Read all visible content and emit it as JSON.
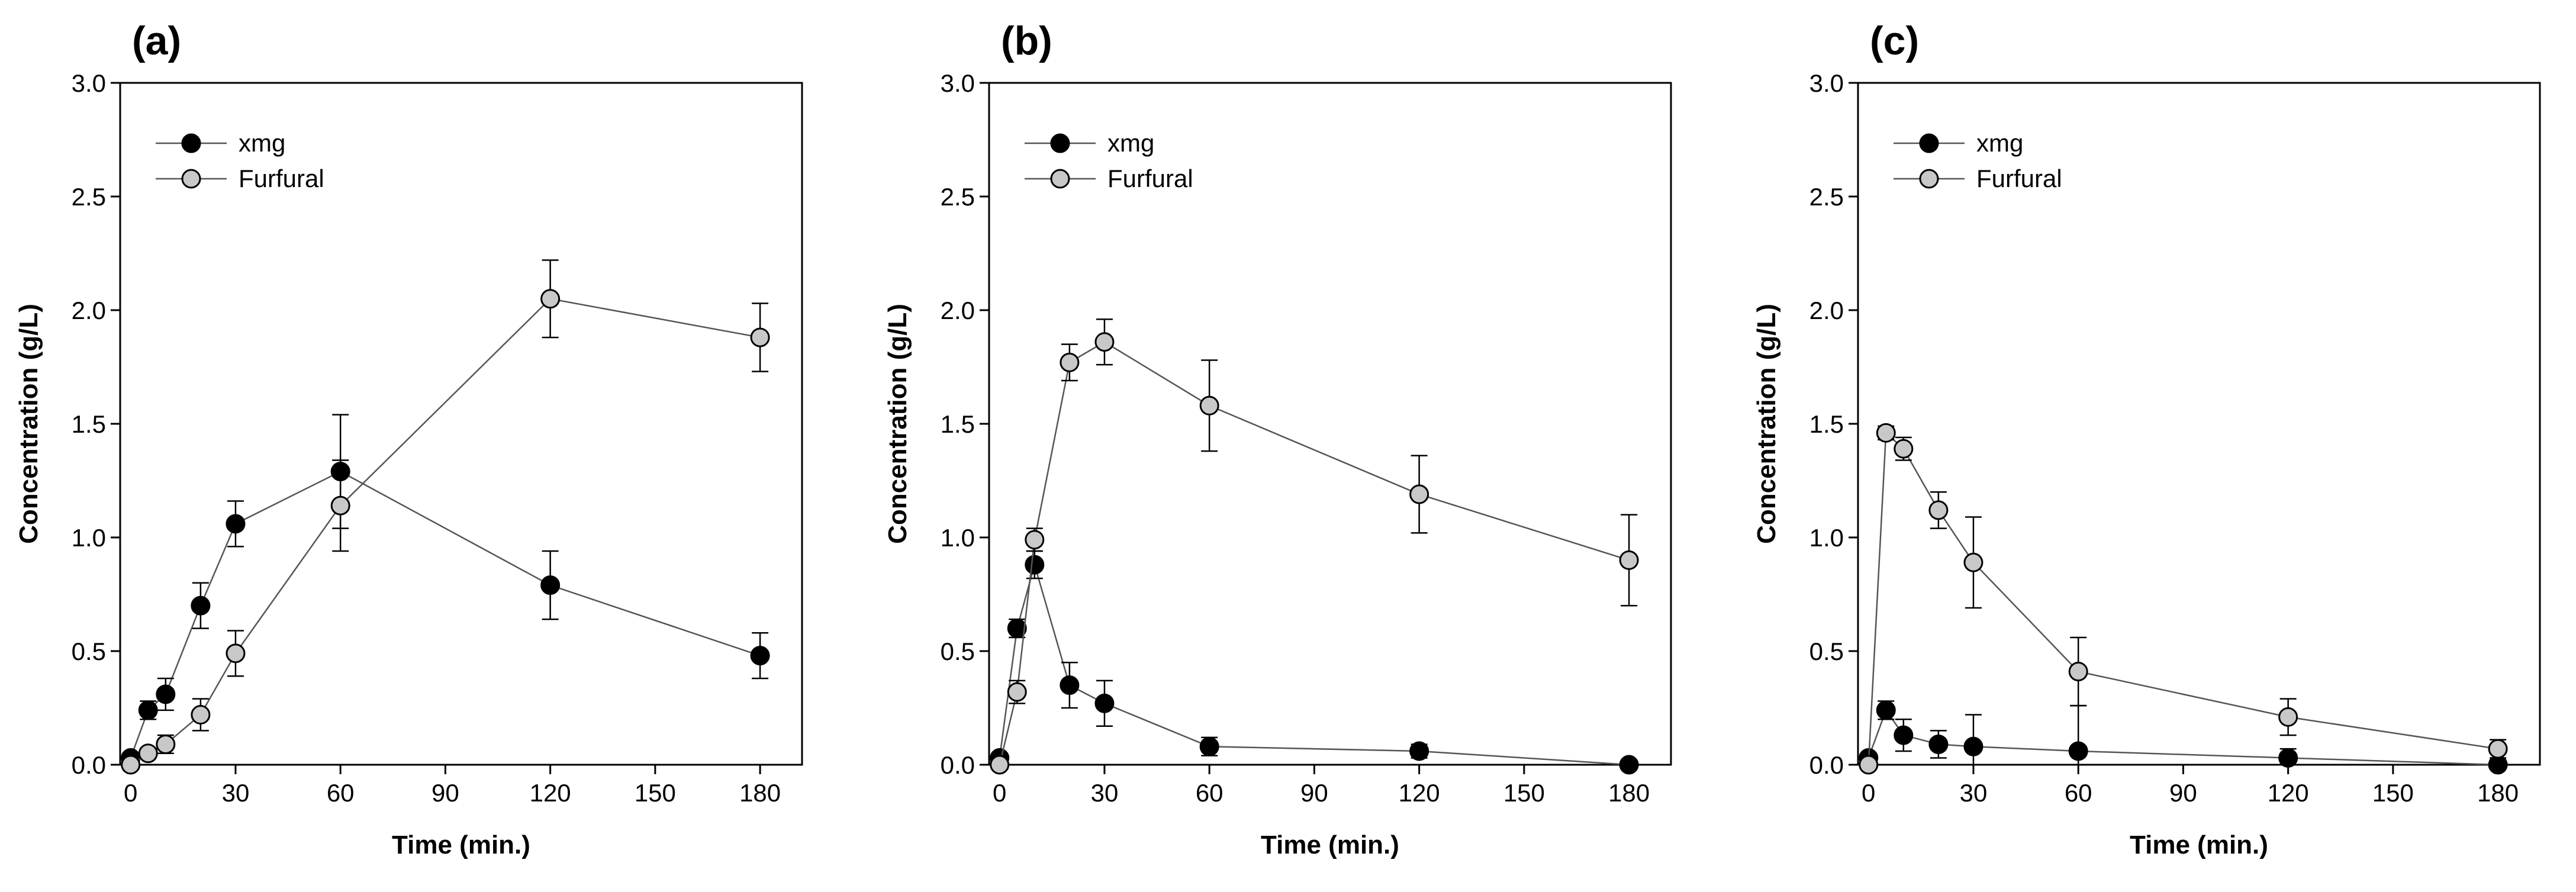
{
  "colors": {
    "xmg": "#000000",
    "furfural": "#c8c8c8",
    "line": "#555555",
    "axis": "#000000"
  },
  "chart_data": [
    {
      "type": "line",
      "panel_label": "(a)",
      "xlabel": "Time (min.)",
      "ylabel": "Concentration (g/L)",
      "xlim": [
        -3,
        192
      ],
      "ylim": [
        0,
        3.0
      ],
      "xticks": [
        0,
        30,
        60,
        90,
        120,
        150,
        180
      ],
      "xtick_labels": [
        "0",
        "30",
        "60",
        "90",
        "120",
        "150",
        "180"
      ],
      "yticks": [
        0,
        0.5,
        1.0,
        1.5,
        2.0,
        2.5,
        3.0
      ],
      "ytick_labels": [
        "0.0",
        "0.5",
        "1.0",
        "1.5",
        "2.0",
        "2.5",
        "3.0"
      ],
      "legend_position": "top-left",
      "series": [
        {
          "name": "xmg",
          "marker": "filled-black-circle",
          "x": [
            0,
            5,
            10,
            20,
            30,
            60,
            120,
            180
          ],
          "y": [
            0.03,
            0.24,
            0.31,
            0.7,
            1.06,
            1.29,
            0.79,
            0.48
          ],
          "err": [
            0,
            0.04,
            0.07,
            0.1,
            0.1,
            0.25,
            0.15,
            0.1
          ]
        },
        {
          "name": "Furfural",
          "marker": "filled-grey-circle",
          "x": [
            0,
            5,
            10,
            20,
            30,
            60,
            120,
            180
          ],
          "y": [
            0.0,
            0.05,
            0.09,
            0.22,
            0.49,
            1.14,
            2.05,
            1.88
          ],
          "err": [
            0,
            0.02,
            0.04,
            0.07,
            0.1,
            0.2,
            0.17,
            0.15
          ]
        }
      ]
    },
    {
      "type": "line",
      "panel_label": "(b)",
      "xlabel": "Time (min.)",
      "ylabel": "Concentration (g/L)",
      "xlim": [
        -3,
        192
      ],
      "ylim": [
        0,
        3.0
      ],
      "xticks": [
        0,
        30,
        60,
        90,
        120,
        150,
        180
      ],
      "xtick_labels": [
        "0",
        "30",
        "60",
        "90",
        "120",
        "150",
        "180"
      ],
      "yticks": [
        0,
        0.5,
        1.0,
        1.5,
        2.0,
        2.5,
        3.0
      ],
      "ytick_labels": [
        "0.0",
        "0.5",
        "1.0",
        "1.5",
        "2.0",
        "2.5",
        "3.0"
      ],
      "legend_position": "top-left",
      "series": [
        {
          "name": "xmg",
          "marker": "filled-black-circle",
          "x": [
            0,
            5,
            10,
            20,
            30,
            60,
            120,
            180
          ],
          "y": [
            0.03,
            0.6,
            0.88,
            0.35,
            0.27,
            0.08,
            0.06,
            0.0
          ],
          "err": [
            0,
            0.04,
            0.06,
            0.1,
            0.1,
            0.04,
            0.03,
            0
          ]
        },
        {
          "name": "Furfural",
          "marker": "filled-grey-circle",
          "x": [
            0,
            5,
            10,
            20,
            30,
            60,
            120,
            180
          ],
          "y": [
            0.0,
            0.32,
            0.99,
            1.77,
            1.86,
            1.58,
            1.19,
            0.9
          ],
          "err": [
            0,
            0.05,
            0.05,
            0.08,
            0.1,
            0.2,
            0.17,
            0.2
          ]
        }
      ]
    },
    {
      "type": "line",
      "panel_label": "(c)",
      "xlabel": "Time (min.)",
      "ylabel": "Concentration (g/L)",
      "xlim": [
        -3,
        192
      ],
      "ylim": [
        0,
        3.0
      ],
      "xticks": [
        0,
        30,
        60,
        90,
        120,
        150,
        180
      ],
      "xtick_labels": [
        "0",
        "30",
        "60",
        "90",
        "120",
        "150",
        "180"
      ],
      "yticks": [
        0,
        0.5,
        1.0,
        1.5,
        2.0,
        2.5,
        3.0
      ],
      "ytick_labels": [
        "0.0",
        "0.5",
        "1.0",
        "1.5",
        "2.0",
        "2.5",
        "3.0"
      ],
      "legend_position": "top-left",
      "series": [
        {
          "name": "xmg",
          "marker": "filled-black-circle",
          "x": [
            0,
            5,
            10,
            20,
            30,
            60,
            120,
            180
          ],
          "y": [
            0.03,
            0.24,
            0.13,
            0.09,
            0.08,
            0.06,
            0.03,
            0.0
          ],
          "err": [
            0,
            0.04,
            0.07,
            0.06,
            0.14,
            0.2,
            0.04,
            0
          ]
        },
        {
          "name": "Furfural",
          "marker": "filled-grey-circle",
          "x": [
            0,
            5,
            10,
            20,
            30,
            60,
            120,
            180
          ],
          "y": [
            0.0,
            1.46,
            1.39,
            1.12,
            0.89,
            0.41,
            0.21,
            0.07
          ],
          "err": [
            0,
            0.03,
            0.05,
            0.08,
            0.2,
            0.15,
            0.08,
            0.04
          ]
        }
      ]
    }
  ]
}
